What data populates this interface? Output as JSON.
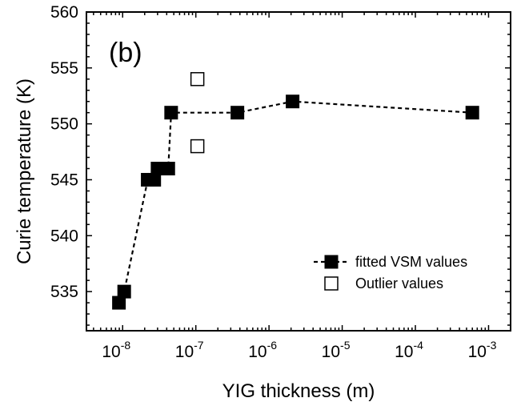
{
  "chart_data": {
    "type": "scatter",
    "panel_label": "(b)",
    "xlabel": "YIG thickness (m)",
    "ylabel": "Curie temperature (K)",
    "xscale": "log",
    "xlim": [
      3.2e-09,
      0.002
    ],
    "ylim": [
      531.5,
      560
    ],
    "x_ticks": [
      {
        "base": "10",
        "exp": "-8",
        "value": 1e-08
      },
      {
        "base": "10",
        "exp": "-7",
        "value": 1e-07
      },
      {
        "base": "10",
        "exp": "-6",
        "value": 1e-06
      },
      {
        "base": "10",
        "exp": "-5",
        "value": 1e-05
      },
      {
        "base": "10",
        "exp": "-4",
        "value": 0.0001
      },
      {
        "base": "10",
        "exp": "-3",
        "value": 0.001
      }
    ],
    "y_ticks": [
      {
        "label": "535",
        "value": 535
      },
      {
        "label": "540",
        "value": 540
      },
      {
        "label": "545",
        "value": 545
      },
      {
        "label": "550",
        "value": 550
      },
      {
        "label": "555",
        "value": 555
      },
      {
        "label": "560",
        "value": 560
      }
    ],
    "grid": false,
    "legend_position": "bottom-right",
    "series": [
      {
        "name": "fitted VSM values",
        "marker": "filled-square",
        "line": "dashed",
        "color": "#000000",
        "points": [
          {
            "x": 8.9e-09,
            "y": 534
          },
          {
            "x": 1.05e-08,
            "y": 535
          },
          {
            "x": 2.2e-08,
            "y": 545
          },
          {
            "x": 2.7e-08,
            "y": 545
          },
          {
            "x": 3e-08,
            "y": 546
          },
          {
            "x": 4.2e-08,
            "y": 546
          },
          {
            "x": 4.6e-08,
            "y": 551
          },
          {
            "x": 3.7e-07,
            "y": 551
          },
          {
            "x": 2.1e-06,
            "y": 552
          },
          {
            "x": 0.0006,
            "y": 551
          }
        ]
      },
      {
        "name": "Outlier values",
        "marker": "open-square",
        "line": "none",
        "color": "#000000",
        "points": [
          {
            "x": 1.05e-07,
            "y": 554
          },
          {
            "x": 1.05e-07,
            "y": 548
          }
        ]
      }
    ]
  }
}
